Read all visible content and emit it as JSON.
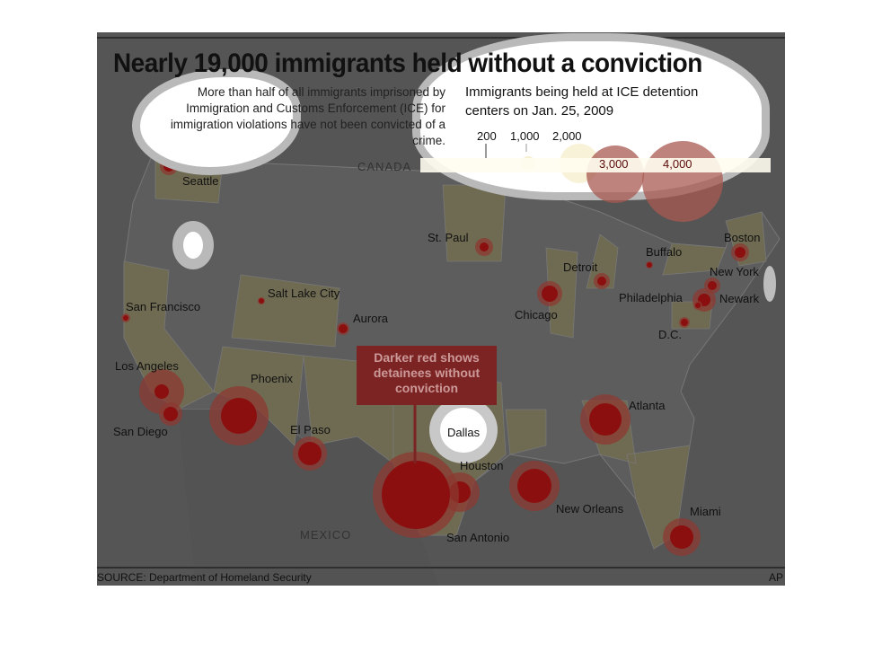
{
  "title": "Nearly 19,000 immigrants held without a conviction",
  "intro": "More than half of all immigrants imprisoned by Immigration and Customs Enforcement (ICE) for immigration violations have not been convicted of a crime.",
  "legend": {
    "title_line1": "Immigrants being held at ICE detention",
    "title_line2": "centers on Jan. 25, 2009",
    "sizes": [
      "200",
      "1,000",
      "2,000",
      "3,000",
      "4,000"
    ]
  },
  "annotation": "Darker red shows detainees without conviction",
  "countries": {
    "canada": "CANADA",
    "mexico": "MEXICO"
  },
  "cities": [
    "Seattle",
    "San Francisco",
    "Salt Lake City",
    "Aurora",
    "St. Paul",
    "Chicago",
    "Detroit",
    "Buffalo",
    "Boston",
    "New York",
    "Newark",
    "Philadelphia",
    "D.C.",
    "Los Angeles",
    "San Diego",
    "Phoenix",
    "El Paso",
    "Dallas",
    "Houston",
    "San Antonio",
    "New Orleans",
    "Atlanta",
    "Miami"
  ],
  "source": "SOURCE: Department of Homeland Security",
  "credit": "AP",
  "colors": {
    "total": "#8c3a32",
    "unconvicted": "#8b0f0f",
    "highlight_state": "#6f6b52",
    "land": "#5a5a5a"
  }
}
